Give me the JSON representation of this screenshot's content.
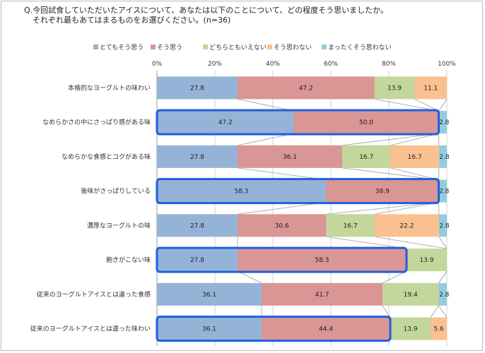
{
  "question": {
    "line1": "Q.今回試食していただいたアイスについて、あなたは以下のことについて、どの程度そう思いましたか。",
    "line2": "それぞれ最もあてはまるものをお選びください。(n=36)"
  },
  "chart_data": {
    "type": "bar",
    "orientation": "horizontal",
    "stacked": "percent",
    "xlim": [
      0,
      100
    ],
    "ticks": [
      "0%",
      "20%",
      "40%",
      "60%",
      "80%",
      "100%"
    ],
    "grid": true,
    "legend_position": "top",
    "categories": [
      "本格的なヨーグルトの味わい",
      "なめらかさの中にさっぱり感がある味",
      "なめらかな食感とコクがある味",
      "後味がさっぱりしている",
      "濃厚なヨーグルトの味",
      "飽きがこない味",
      "従来のヨーグルトアイスとは違った食感",
      "従来のヨーグルトアイスとは違った味わい"
    ],
    "series": [
      {
        "name": "とてもそう思う",
        "color": "#95b3d7",
        "values": [
          27.8,
          47.2,
          27.8,
          58.3,
          27.8,
          27.8,
          36.1,
          36.1
        ]
      },
      {
        "name": "そう思う",
        "color": "#d99694",
        "values": [
          47.2,
          50.0,
          36.1,
          38.9,
          30.6,
          58.3,
          41.7,
          44.4
        ]
      },
      {
        "name": "どちらともいえない",
        "color": "#c3d69b",
        "values": [
          13.9,
          0,
          16.7,
          0,
          16.7,
          13.9,
          19.4,
          13.9
        ]
      },
      {
        "name": "そう思わない",
        "color": "#fac090",
        "values": [
          11.1,
          0,
          16.7,
          0,
          22.2,
          0,
          0,
          5.6
        ]
      },
      {
        "name": "まったくそう思わない",
        "color": "#93cddd",
        "values": [
          0,
          2.8,
          2.8,
          2.8,
          2.8,
          0,
          2.8,
          0
        ]
      }
    ],
    "highlighted_rows": [
      "なめらかさの中にさっぱり感がある味",
      "後味がさっぱりしている",
      "飽きがこない味",
      "従来のヨーグルトアイスとは違った味わい"
    ],
    "highlight_color": "#1f5fdc"
  }
}
